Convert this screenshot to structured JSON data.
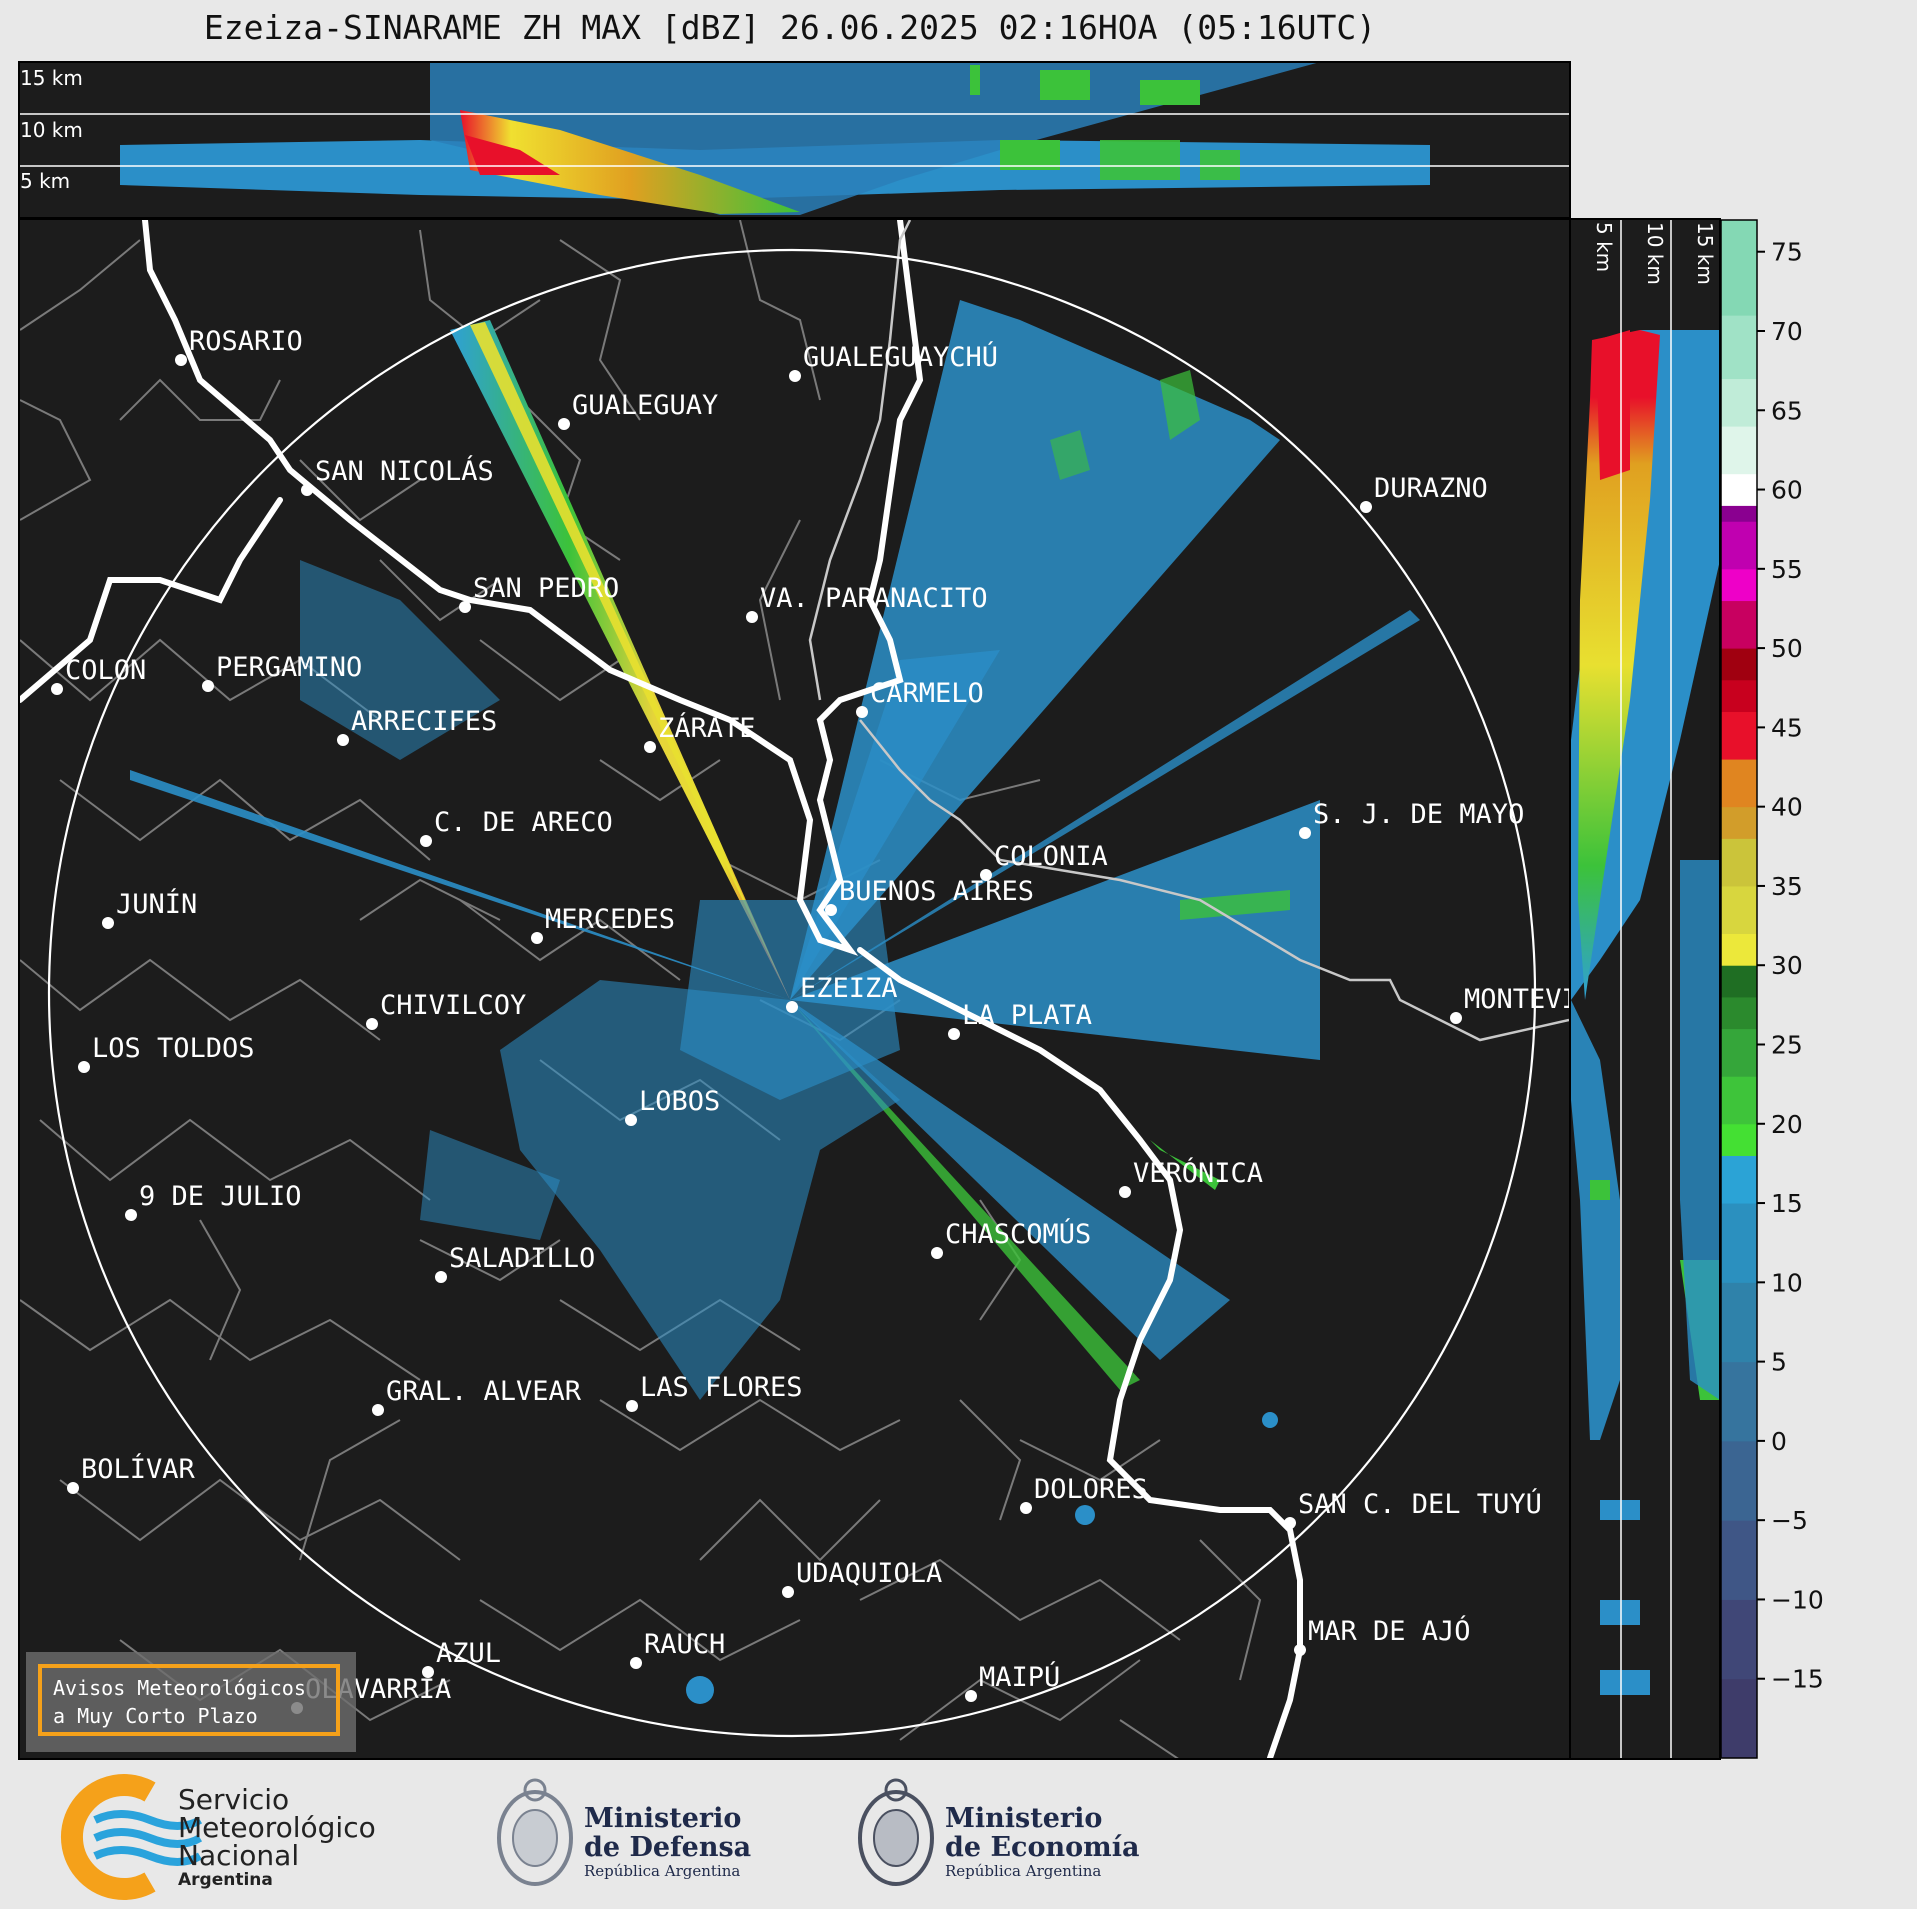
{
  "title": "Ezeiza-SINARAME ZH MAX [dBZ] 26.06.2025 02:16HOA (05:16UTC)",
  "top_panel": {
    "height_labels": [
      "15 km",
      "10 km",
      "5 km"
    ]
  },
  "side_panel": {
    "height_labels": [
      "5 km",
      "10 km",
      "15 km"
    ]
  },
  "colorbar": {
    "ticks": [
      "75",
      "70",
      "65",
      "60",
      "55",
      "50",
      "45",
      "40",
      "35",
      "30",
      "25",
      "20",
      "15",
      "10",
      "5",
      "0",
      "−5",
      "−10",
      "−15"
    ],
    "unit": "dBZ",
    "range": [
      -20,
      77
    ]
  },
  "cities": [
    {
      "name": "ROSARIO"
    },
    {
      "name": "GUALEGUAYCHÚ"
    },
    {
      "name": "GUALEGUAY"
    },
    {
      "name": "SAN NICOLÁS"
    },
    {
      "name": "DURAZNO"
    },
    {
      "name": "SAN PEDRO"
    },
    {
      "name": "VA. PARANACITO"
    },
    {
      "name": "COLON"
    },
    {
      "name": "PERGAMINO"
    },
    {
      "name": "CARMELO"
    },
    {
      "name": "ARRECIFES"
    },
    {
      "name": "ZÁRATE"
    },
    {
      "name": "S. J. DE MAYO"
    },
    {
      "name": "C. DE ARECO"
    },
    {
      "name": "COLONIA"
    },
    {
      "name": "BUENOS AIRES"
    },
    {
      "name": "JUNÍN"
    },
    {
      "name": "MERCEDES"
    },
    {
      "name": "EZEIZA"
    },
    {
      "name": "MONTEVIDEO"
    },
    {
      "name": "CHIVILCOY"
    },
    {
      "name": "LA PLATA"
    },
    {
      "name": "LOS TOLDOS"
    },
    {
      "name": "LOBOS"
    },
    {
      "name": "VERÓNICA"
    },
    {
      "name": "9 DE JULIO"
    },
    {
      "name": "CHASCOMÚS"
    },
    {
      "name": "SALADILLO"
    },
    {
      "name": "GRAL. ALVEAR"
    },
    {
      "name": "LAS FLORES"
    },
    {
      "name": "BOLÍVAR"
    },
    {
      "name": "DOLORES"
    },
    {
      "name": "SAN C. DEL TUYÚ"
    },
    {
      "name": "UDAQUIOLA"
    },
    {
      "name": "MAR DE AJÓ"
    },
    {
      "name": "AZUL"
    },
    {
      "name": "OLAVARRÍA"
    },
    {
      "name": "RAUCH"
    },
    {
      "name": "MAIPÚ"
    }
  ],
  "avisos": {
    "line1": "Avisos Meteorológicos",
    "line2": "a Muy Corto Plazo"
  },
  "logos": {
    "smn": {
      "line1": "Servicio",
      "line2": "Meteorológico",
      "line3": "Nacional",
      "line4": "Argentina"
    },
    "defensa": {
      "line1": "Ministerio",
      "line2": "de Defensa",
      "line3": "República Argentina"
    },
    "economia": {
      "line1": "Ministerio",
      "line2": "de Economía",
      "line3": "República Argentina"
    }
  },
  "colors": {
    "background": "#1c1c1c",
    "range_ring": "#ffffff",
    "avisos_border": "#f5a11a",
    "smn_orange": "#f5a11a",
    "smn_blue": "#2aa3dc"
  }
}
